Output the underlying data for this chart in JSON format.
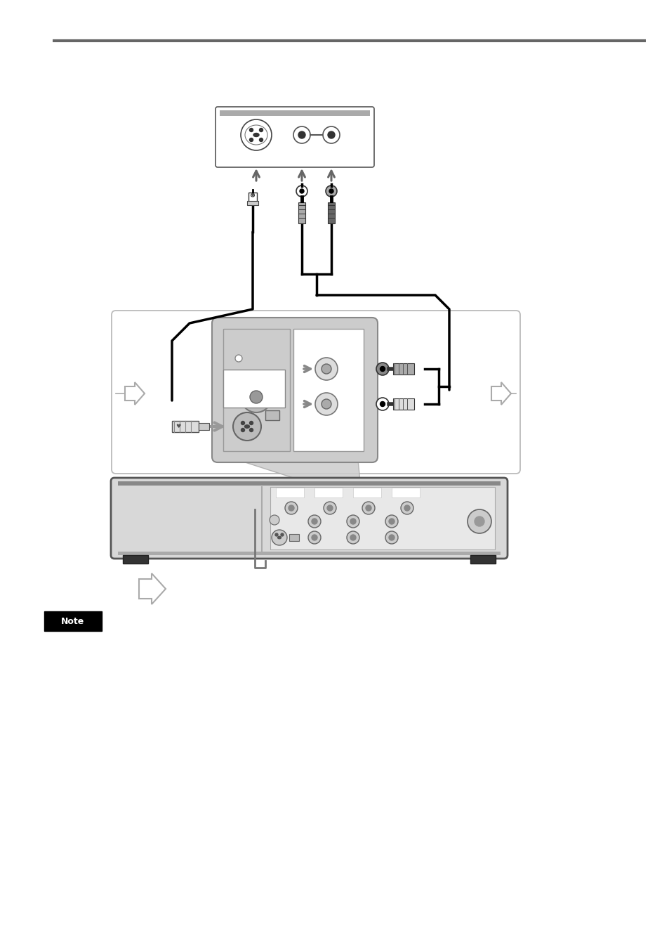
{
  "bg_color": "#ffffff",
  "line_color": "#000000",
  "gray_color": "#808080",
  "light_gray": "#c8c8c8",
  "dark_gray": "#555555",
  "top_bar_color": "#666666",
  "note_label_color": "#ffffff",
  "note_bg_color": "#000000",
  "page_width": 9.54,
  "page_height": 13.52
}
